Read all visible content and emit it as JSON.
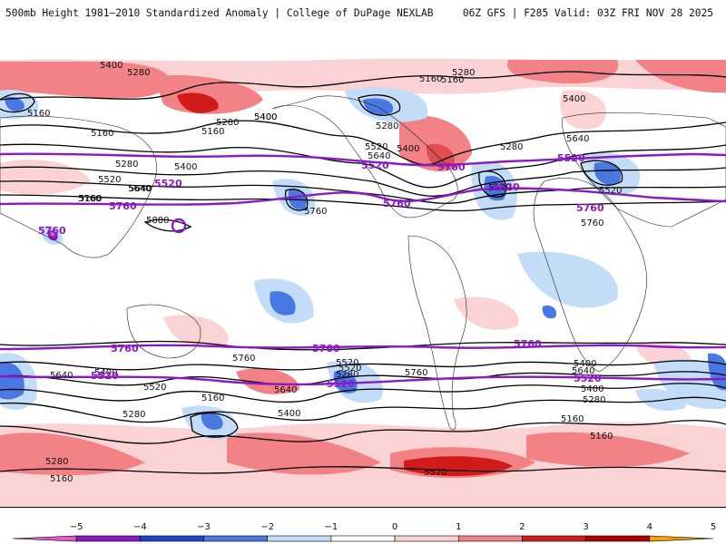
{
  "header": {
    "title_left": "500mb Height 1981–2010 Standardized Anomaly | College of DuPage NEXLAB",
    "title_right": "06Z GFS | F285 Valid: 03Z FRI NOV 28 2025"
  },
  "map": {
    "projection": "global equirectangular",
    "field": "500mb height standardized anomaly",
    "height_labels_black": [
      "5400",
      "5280",
      "5160",
      "5280",
      "5400",
      "5160",
      "5280",
      "5160",
      "5400",
      "5520",
      "5640",
      "5400",
      "5280",
      "5520",
      "5640",
      "5160",
      "5520",
      "5400",
      "5280",
      "5160",
      "5760",
      "5640",
      "5880",
      "5760",
      "5760",
      "5640",
      "5400",
      "5520",
      "5280",
      "5160",
      "5640",
      "5520",
      "5400",
      "5280",
      "5160",
      "5400",
      "5760",
      "5520",
      "5280",
      "5760",
      "5640",
      "5520",
      "5400",
      "5280",
      "5160",
      "5160",
      "5280",
      "5160",
      "5400",
      "5520",
      "5640"
    ],
    "height_labels_purple": [
      "5520",
      "5760",
      "5520",
      "5760",
      "5520",
      "5760",
      "5760",
      "5760",
      "5760",
      "5760",
      "5520",
      "5520",
      "5520",
      "5760",
      "5520"
    ],
    "colors": {
      "neg5": "#e15cc9",
      "neg4": "#8a1bc4",
      "neg3": "#1f44c7",
      "neg2": "#4a78e3",
      "neg1": "#c3dcf7",
      "zero": "#ffffff",
      "pos1": "#fbd3d4",
      "pos2": "#f28285",
      "pos3": "#d11b1b",
      "pos4": "#b00000",
      "pos5": "#f5a200",
      "contour": "#000000",
      "thick_contour": "#8a1bc4"
    }
  },
  "legend": {
    "ticks": [
      "−5",
      "−4",
      "−3",
      "−2",
      "−1",
      "0",
      "1",
      "2",
      "3",
      "4",
      "5"
    ],
    "bins": [
      {
        "color": "#e15cc9"
      },
      {
        "color": "#8a1bc4"
      },
      {
        "color": "#1f44c7"
      },
      {
        "color": "#4a78e3"
      },
      {
        "color": "#c3dcf7"
      },
      {
        "color": "#ffffff"
      },
      {
        "color": "#fbd3d4"
      },
      {
        "color": "#f28285"
      },
      {
        "color": "#d11b1b"
      },
      {
        "color": "#b00000"
      },
      {
        "color": "#f5a200"
      }
    ]
  }
}
